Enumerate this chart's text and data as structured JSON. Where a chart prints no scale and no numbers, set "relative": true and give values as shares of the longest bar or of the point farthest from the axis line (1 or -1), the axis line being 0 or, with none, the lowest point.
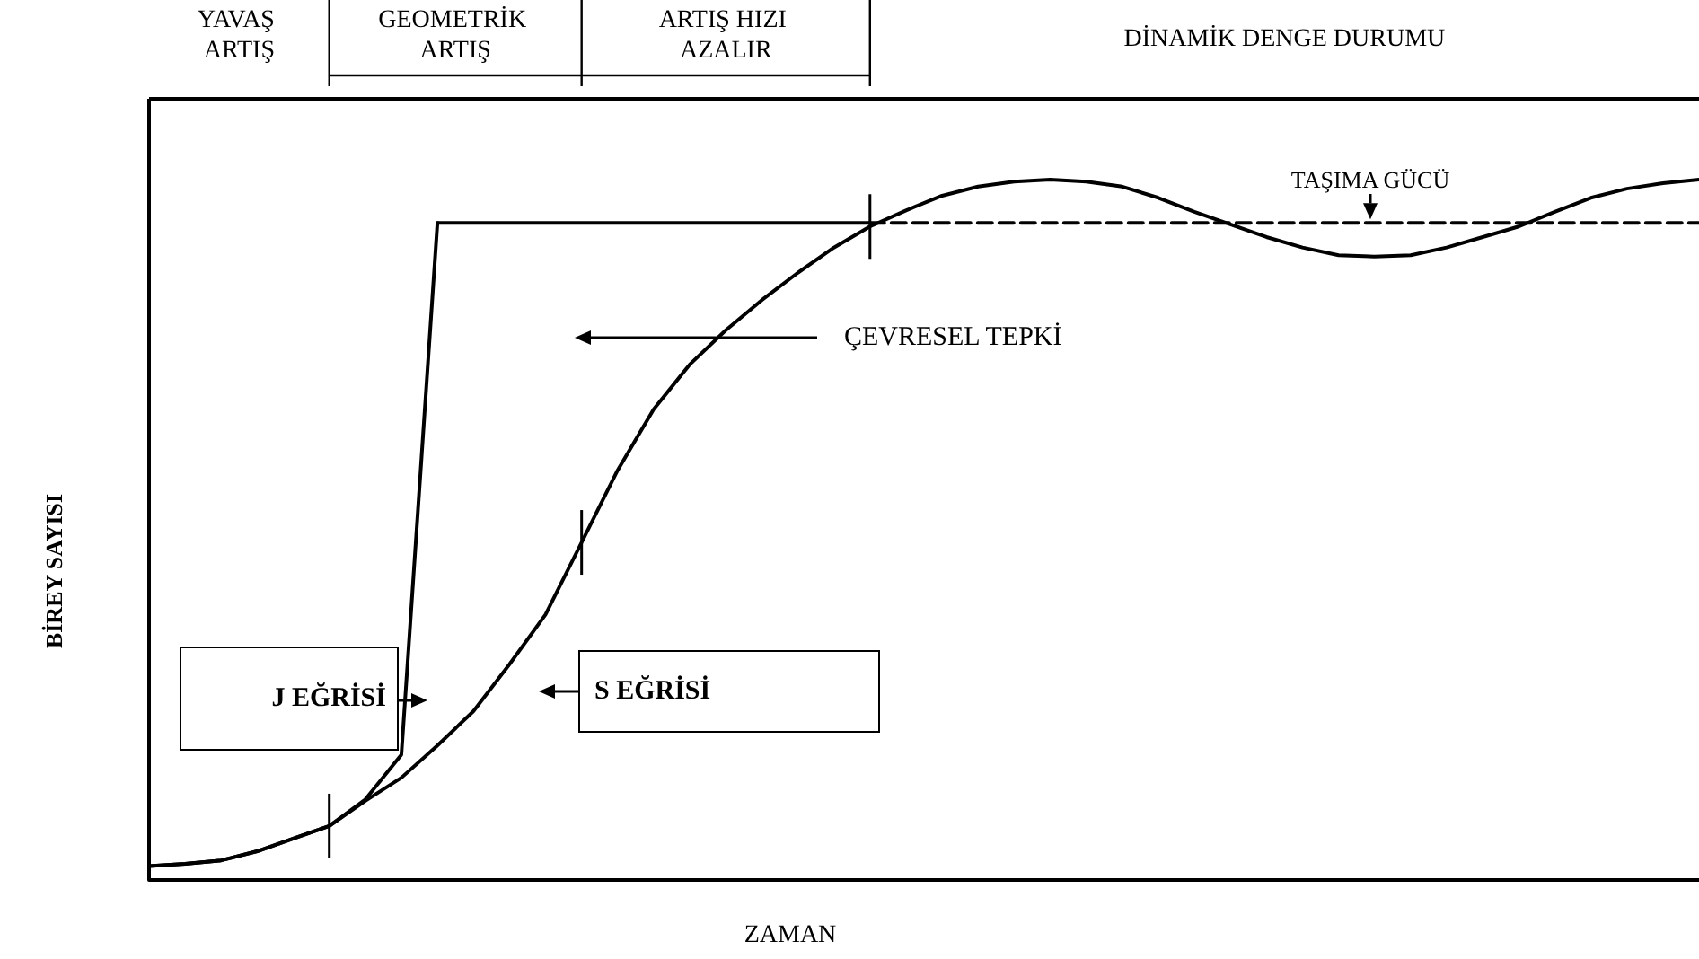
{
  "chart_data": {
    "type": "line",
    "relative": true,
    "tick_labels": false,
    "xlabel": "ZAMAN",
    "ylabel": "BİREY SAYISI",
    "categories": [
      null,
      null,
      null,
      null,
      null,
      null,
      null,
      null,
      null,
      null,
      null,
      null,
      null,
      null,
      null,
      null,
      null,
      null,
      null,
      null,
      null,
      null,
      null,
      null,
      null,
      null,
      null,
      null,
      null,
      null,
      null,
      null,
      null,
      null,
      null,
      null,
      null,
      null,
      null,
      null,
      null,
      null,
      null,
      null
    ],
    "series": [
      {
        "name": "J EĞRİSİ",
        "color": "#000000",
        "line_style": "solid",
        "values": [
          0.02,
          0.023,
          0.028,
          0.041,
          0.059,
          0.077,
          0.115,
          0.179,
          0.938,
          null,
          null,
          null,
          null,
          null,
          null,
          null,
          null,
          null,
          null,
          null,
          null,
          null,
          null,
          null,
          null,
          null,
          null,
          null,
          null,
          null,
          null,
          null,
          null,
          null,
          null,
          null,
          null,
          null,
          null,
          null,
          null,
          null,
          null,
          null
        ]
      },
      {
        "name": "S EĞRİSİ",
        "color": "#000000",
        "line_style": "solid",
        "values": [
          0.02,
          0.023,
          0.028,
          0.041,
          0.059,
          0.077,
          0.113,
          0.146,
          0.192,
          0.241,
          0.308,
          0.379,
          0.482,
          0.585,
          0.672,
          0.736,
          0.785,
          0.828,
          0.867,
          0.903,
          0.933,
          0.956,
          0.977,
          0.99,
          0.997,
          1.0,
          0.997,
          0.99,
          0.974,
          0.954,
          0.936,
          0.918,
          0.903,
          0.892,
          0.89,
          0.892,
          0.903,
          0.918,
          0.933,
          0.954,
          0.974,
          0.987,
          0.995,
          1.0
        ]
      },
      {
        "color": "#000000",
        "line_style": "solid",
        "values": [
          null,
          null,
          null,
          null,
          null,
          null,
          null,
          null,
          0.938,
          0.938,
          0.938,
          0.938,
          0.938,
          0.938,
          0.938,
          0.938,
          0.938,
          0.938,
          0.938,
          0.938,
          0.938,
          null,
          null,
          null,
          null,
          null,
          null,
          null,
          null,
          null,
          null,
          null,
          null,
          null,
          null,
          null,
          null,
          null,
          null,
          null,
          null,
          null,
          null,
          null
        ]
      },
      {
        "color": "#000000",
        "line_style": "dashed",
        "values": [
          null,
          null,
          null,
          null,
          null,
          null,
          null,
          null,
          null,
          null,
          null,
          null,
          null,
          null,
          null,
          null,
          null,
          null,
          null,
          null,
          0.938,
          0.938,
          0.938,
          0.938,
          0.938,
          0.938,
          0.938,
          0.938,
          0.938,
          0.938,
          0.938,
          0.938,
          0.938,
          0.938,
          0.938,
          0.938,
          0.938,
          0.938,
          0.938,
          0.938,
          0.938,
          0.938,
          0.938,
          0.938
        ]
      }
    ],
    "annotations": [
      "YAVAŞ ARTIŞ",
      "GEOMETRİK ARTIŞ",
      "ARTIŞ HIZI AZALIR",
      "DİNAMİK DENGE DURUMU",
      "TAŞIMA GÜCÜ",
      "ÇEVRESEL TEPKİ"
    ]
  }
}
